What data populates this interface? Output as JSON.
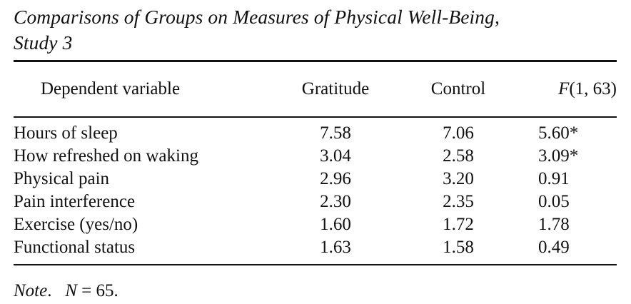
{
  "caption": {
    "line1": "Comparisons of Groups on Measures of Physical Well-Being,",
    "line2": "Study 3"
  },
  "table": {
    "headers": {
      "dependent_variable": "Dependent variable",
      "gratitude": "Gratitude",
      "control": "Control",
      "f_letter": "F",
      "f_df": "(1, 63)"
    },
    "rows": [
      {
        "label": "Hours of sleep",
        "gratitude": "7.58",
        "control": "7.06",
        "f": "5.60*"
      },
      {
        "label": "How refreshed on waking",
        "gratitude": "3.04",
        "control": "2.58",
        "f": "3.09*"
      },
      {
        "label": "Physical pain",
        "gratitude": "2.96",
        "control": "3.20",
        "f": "0.91"
      },
      {
        "label": "Pain interference",
        "gratitude": "2.30",
        "control": "2.35",
        "f": "0.05"
      },
      {
        "label": "Exercise (yes/no)",
        "gratitude": "1.60",
        "control": "1.72",
        "f": "1.78"
      },
      {
        "label": "Functional status",
        "gratitude": "1.63",
        "control": "1.58",
        "f": "0.49"
      }
    ]
  },
  "note": {
    "label": "Note",
    "text": "N = 65."
  }
}
